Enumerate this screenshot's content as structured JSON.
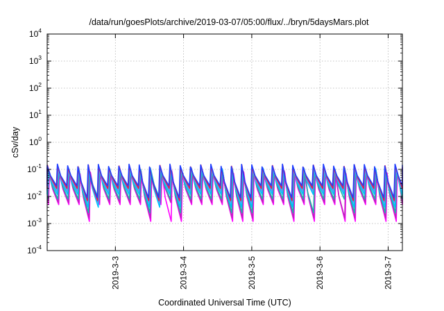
{
  "chart_data": {
    "type": "line",
    "title": "/data/run/goesPlots/archive/2019-03-07/05:00/flux/../bryn/5daysMars.plot",
    "xlabel": "Coordinated Universal Time (UTC)",
    "ylabel": "cSv/day",
    "y_scale": "log",
    "ylim": [
      0.0001,
      10000
    ],
    "y_ticks": [
      {
        "value": 0.0001,
        "base": "10",
        "exp": "-4"
      },
      {
        "value": 0.001,
        "base": "10",
        "exp": "-3"
      },
      {
        "value": 0.01,
        "base": "10",
        "exp": "-2"
      },
      {
        "value": 0.1,
        "base": "10",
        "exp": "-1"
      },
      {
        "value": 1,
        "base": "10",
        "exp": "0"
      },
      {
        "value": 10,
        "base": "10",
        "exp": "1"
      },
      {
        "value": 100,
        "base": "10",
        "exp": "2"
      },
      {
        "value": 1000,
        "base": "10",
        "exp": "3"
      },
      {
        "value": 10000,
        "base": "10",
        "exp": "4"
      }
    ],
    "xlim": [
      "2019-03-02 00:00",
      "2019-03-07 05:00"
    ],
    "x_ticks": [
      {
        "value": "2019-03-03",
        "label": "2019-3-3"
      },
      {
        "value": "2019-03-04",
        "label": "2019-3-4"
      },
      {
        "value": "2019-03-05",
        "label": "2019-3-5"
      },
      {
        "value": "2019-03-06",
        "label": "2019-3-6"
      },
      {
        "value": "2019-03-07",
        "label": "2019-3-7"
      }
    ],
    "grid": true,
    "legend": false,
    "period_hours": 3.6,
    "dip_windows": [
      {
        "start": "2019-03-02 10:00",
        "end": "2019-03-02 16:30"
      },
      {
        "start": "2019-03-03 10:00",
        "end": "2019-03-03 14:00"
      },
      {
        "start": "2019-03-03 18:00",
        "end": "2019-03-03 23:00"
      },
      {
        "start": "2019-03-04 14:00",
        "end": "2019-03-04 23:30"
      },
      {
        "start": "2019-03-05 12:00",
        "end": "2019-03-05 14:00"
      },
      {
        "start": "2019-03-05 20:00",
        "end": "2019-03-05 23:00"
      },
      {
        "start": "2019-03-06 07:00",
        "end": "2019-03-06 12:30"
      },
      {
        "start": "2019-03-06 20:00",
        "end": "2019-03-07 03:00"
      }
    ],
    "series": [
      {
        "color": "#ff00ff",
        "peak": 0.07,
        "deep_min": 0.0012,
        "shallow_min": 0.005,
        "delay_hours": 0.8
      },
      {
        "color": "#c020c0",
        "peak": 0.08,
        "deep_min": 0.0016,
        "shallow_min": 0.006,
        "delay_hours": 0.65
      },
      {
        "color": "#20b2aa",
        "peak": 0.09,
        "deep_min": 0.0025,
        "shallow_min": 0.008,
        "delay_hours": 0.5
      },
      {
        "color": "#00bfff",
        "peak": 0.1,
        "deep_min": 0.004,
        "shallow_min": 0.012,
        "delay_hours": 0.35
      },
      {
        "color": "#6495ed",
        "peak": 0.11,
        "deep_min": 0.006,
        "shallow_min": 0.016,
        "delay_hours": 0.2
      },
      {
        "color": "#e6194b",
        "peak": 0.13,
        "deep_min": 0.007,
        "shallow_min": 0.02,
        "delay_hours": 0.1
      },
      {
        "color": "#1f3fff",
        "peak": 0.14,
        "deep_min": 0.009,
        "shallow_min": 0.025,
        "delay_hours": 0.0
      }
    ]
  }
}
